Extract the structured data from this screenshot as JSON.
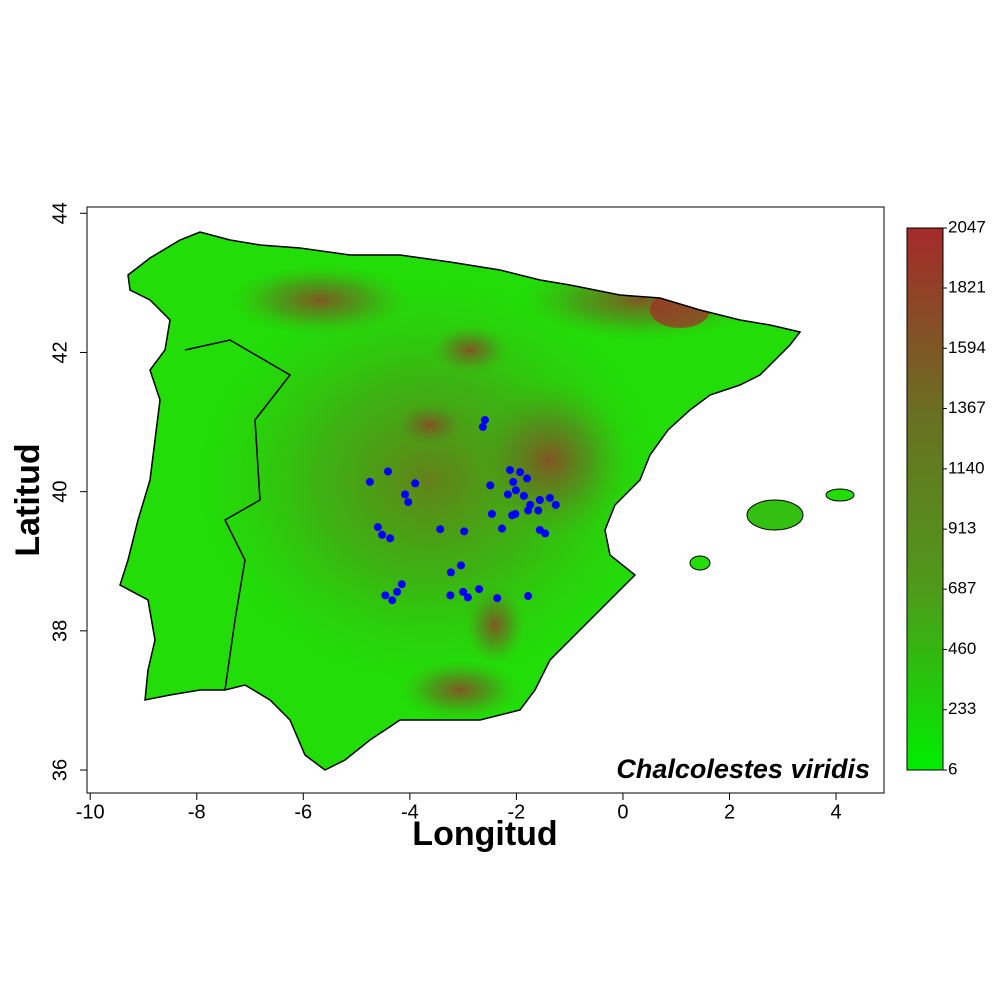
{
  "chart_data": {
    "type": "scatter",
    "title": "Chalcolestes viridis",
    "x_label": "Longitud",
    "y_label": "Latitud",
    "xlim": [
      -10.06,
      4.9
    ],
    "ylim": [
      35.67,
      44.09
    ],
    "xticks": [
      -10,
      -8,
      -6,
      -4,
      -2,
      0,
      2,
      4
    ],
    "yticks": [
      36,
      38,
      40,
      42,
      44
    ],
    "series": [
      {
        "color": "#0000ff",
        "x": [
          -4.75,
          -4.41,
          -3.9,
          -4.09,
          -4.03,
          -4.6,
          -4.52,
          -4.37,
          -4.46,
          -4.33,
          -4.24,
          -4.15,
          -3.43,
          -2.98,
          -3.04,
          -3.23,
          -3.24,
          -3.0,
          -2.91,
          -2.7,
          -2.36,
          -1.78,
          -2.59,
          -2.63,
          -2.49,
          -2.46,
          -2.06,
          -2.12,
          -1.93,
          -1.8,
          -2.01,
          -2.16,
          -1.86,
          -1.74,
          -1.56,
          -1.37,
          -1.26,
          -1.59,
          -1.78,
          -2.08,
          -1.56,
          -1.46,
          -2.27,
          -2.02
        ],
        "y": [
          40.14,
          40.29,
          40.12,
          39.96,
          39.85,
          39.49,
          39.38,
          39.33,
          38.51,
          38.44,
          38.56,
          38.67,
          39.46,
          39.43,
          38.94,
          38.84,
          38.51,
          38.56,
          38.48,
          38.6,
          38.47,
          38.5,
          41.03,
          40.93,
          40.09,
          39.68,
          40.14,
          40.31,
          40.28,
          40.19,
          40.02,
          39.96,
          39.94,
          39.81,
          39.88,
          39.91,
          39.81,
          39.73,
          39.73,
          39.66,
          39.45,
          39.4,
          39.47,
          39.68
        ]
      }
    ],
    "colorbar": {
      "range": [
        6,
        2047
      ],
      "ticks": [
        6,
        233,
        460,
        687,
        913,
        1140,
        1367,
        1594,
        1821,
        2047
      ],
      "colors": [
        "#00ee00",
        "#4e9a1a",
        "#6b6e22",
        "#a52a2a"
      ]
    }
  }
}
